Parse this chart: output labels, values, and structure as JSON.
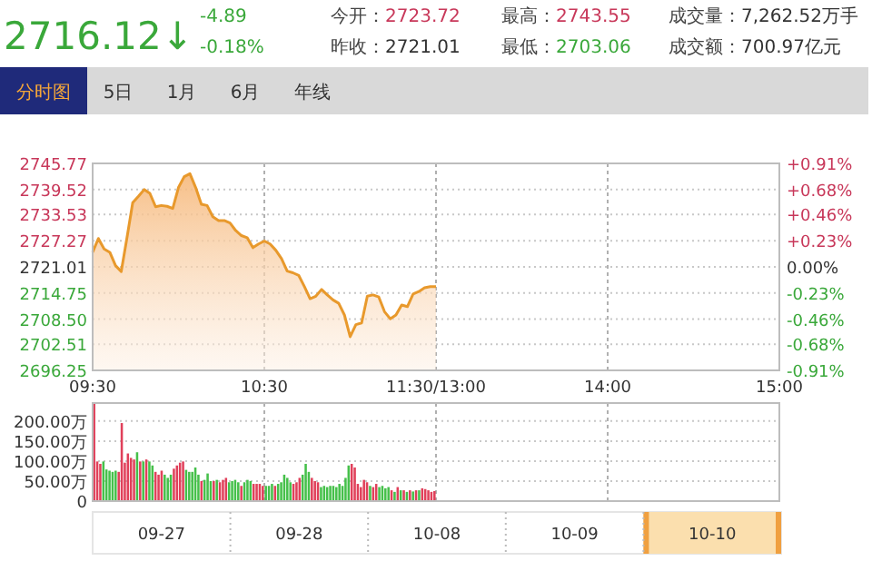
{
  "chart_data": [
    {
      "type": "area",
      "title": "2716.12↓",
      "annotations": [
        "-4.89",
        "-0.18%",
        "今开：2723.72",
        "昨收：2721.01",
        "最高：2743.55",
        "最低：2703.06",
        "成交量：7,262.52万手",
        "成交额：700.97亿元",
        "分时图",
        "5日",
        "1月",
        "6月",
        "年线"
      ],
      "categories": [
        "09:30",
        null,
        null,
        null,
        null,
        null,
        null,
        null,
        null,
        null,
        null,
        null,
        null,
        null,
        null,
        null,
        null,
        null,
        null,
        null,
        null,
        null,
        null,
        null,
        null,
        null,
        null,
        null,
        null,
        null,
        "10:30",
        null,
        null,
        null,
        null,
        null,
        null,
        null,
        null,
        null,
        null,
        null,
        null,
        null,
        null,
        null,
        null,
        null,
        null,
        null,
        null,
        null,
        null,
        null,
        null,
        null,
        null,
        null,
        null,
        null,
        "11:30/13:00",
        null,
        null,
        null,
        null,
        null,
        null,
        null,
        null,
        null,
        null,
        null,
        null,
        null,
        null,
        null,
        null,
        null,
        null,
        null,
        null,
        null,
        null,
        null,
        null,
        null,
        null,
        null,
        null,
        null,
        "14:00",
        null,
        null,
        null,
        null,
        null,
        null,
        null,
        null,
        null,
        null,
        null,
        null,
        null,
        null,
        null,
        null,
        null,
        null,
        null,
        null,
        null,
        null,
        null,
        null,
        null,
        null,
        null,
        null,
        null,
        "15:00"
      ],
      "series": [
        {
          "color": "#e8992c",
          "values": [
            2724.5,
            2727.8,
            2725.3,
            2724.5,
            2721.3,
            2719.9,
            2728,
            2736.4,
            2737.9,
            2739.5,
            2738.6,
            2735.4,
            2735.7,
            2735.5,
            2735,
            2740,
            2742.6,
            2743.3,
            2740,
            2736,
            2735.7,
            2733,
            2732.1,
            2732.1,
            2731.5,
            2729.7,
            2728.5,
            2728,
            2725.6,
            2726.5,
            2727.2,
            2726.5,
            2725,
            2723,
            2720,
            2719.6,
            2719,
            2716.3,
            2713.4,
            2714,
            2715.6,
            2714.3,
            2713.1,
            2712.3,
            2709.5,
            2704.3,
            2707.2,
            2707.6,
            2714,
            2714.3,
            2713.8,
            2710.3,
            2708.6,
            2709.5,
            2711.9,
            2711.5,
            2714.5,
            2715.1,
            2716,
            2716.3,
            2716.3,
            null,
            null,
            null,
            null,
            null,
            null,
            null,
            null,
            null,
            null,
            null,
            null,
            null,
            null,
            null,
            null,
            null,
            null,
            null,
            null,
            null,
            null,
            null,
            null,
            null,
            null,
            null,
            null,
            null,
            null,
            null,
            null,
            null,
            null,
            null,
            null,
            null,
            null,
            null,
            null,
            null,
            null,
            null,
            null,
            null,
            null,
            null,
            null,
            null,
            null,
            null,
            null,
            null,
            null,
            null,
            null,
            null,
            null,
            null,
            null
          ]
        }
      ],
      "ylim": [
        2696.25,
        2745.77
      ],
      "yticks": [
        2696.25,
        2702.51,
        {
          "value": 2708.5,
          "label": "2708.50"
        },
        2714.75,
        2721.01,
        2727.27,
        2733.53,
        2739.52,
        2745.77
      ],
      "y2lim": [
        -0.91,
        0.91
      ],
      "y2ticks": [
        {
          "value": -0.91,
          "label": "-0.91%"
        },
        {
          "value": -0.68,
          "label": "-0.68%"
        },
        {
          "value": -0.46,
          "label": "-0.46%"
        },
        {
          "value": -0.23,
          "label": "-0.23%"
        },
        {
          "value": 0,
          "label": "0.00%"
        },
        {
          "value": 0.23,
          "label": "+0.23%"
        },
        {
          "value": 0.46,
          "label": "+0.46%"
        },
        {
          "value": 0.68,
          "label": "+0.68%"
        },
        {
          "value": 0.91,
          "label": "+0.91%"
        }
      ],
      "grid": true
    },
    {
      "type": "bar",
      "annotations": [
        "09-27",
        "09-28",
        "10-08",
        "10-09",
        "10-10"
      ],
      "categories": [
        null,
        null,
        null,
        null,
        null,
        null,
        null,
        null,
        null,
        null,
        null,
        null,
        null,
        null,
        null,
        null,
        null,
        null,
        null,
        null,
        null,
        null,
        null,
        null,
        null,
        null,
        null,
        null,
        null,
        null,
        null,
        null,
        null,
        null,
        null,
        null,
        null,
        null,
        null,
        null,
        null,
        null,
        null,
        null,
        null,
        null,
        null,
        null,
        null,
        null,
        null,
        null,
        null,
        null,
        null,
        null,
        null,
        null,
        null,
        null,
        null,
        null,
        null,
        null,
        null,
        null,
        null,
        null,
        null,
        null,
        null,
        null,
        null,
        null,
        null,
        null,
        null,
        null,
        null,
        null,
        null,
        null,
        null,
        null,
        null,
        null,
        null,
        null,
        null,
        null,
        null,
        null,
        null,
        null,
        null,
        null,
        null,
        null,
        null,
        null,
        null,
        null,
        null,
        null,
        null,
        null,
        null,
        null,
        null,
        null,
        null,
        null,
        null,
        null,
        null,
        null,
        null,
        null,
        null,
        null,
        null,
        null,
        null,
        null,
        null,
        null,
        null,
        null,
        null,
        null,
        null,
        null,
        null,
        null,
        null,
        null,
        null,
        null,
        null,
        null,
        null,
        null,
        null,
        null,
        null,
        null,
        null,
        null,
        null,
        null,
        null,
        null,
        null,
        null,
        null,
        null,
        null,
        null,
        null,
        null,
        null,
        null,
        null,
        null,
        null,
        null,
        null,
        null,
        null,
        null,
        null,
        null,
        null,
        null,
        null,
        null,
        null,
        null,
        null,
        null,
        null,
        null,
        null,
        null,
        null,
        null,
        null,
        null,
        null,
        null,
        null,
        null,
        null,
        null,
        null,
        null,
        null,
        null,
        null,
        null,
        null,
        null,
        null,
        null,
        null,
        null,
        null,
        null,
        null,
        null,
        null,
        null,
        null,
        null,
        null,
        null,
        null,
        null,
        null,
        null,
        null,
        null,
        null,
        null
      ],
      "values": [
        245,
        99,
        93,
        99,
        79,
        76,
        73,
        76,
        73,
        195,
        96,
        119,
        108,
        104,
        122,
        99,
        99,
        104,
        99,
        89,
        73,
        66,
        76,
        66,
        58,
        66,
        81,
        89,
        96,
        99,
        78,
        73,
        73,
        84,
        66,
        50,
        53,
        69,
        50,
        50,
        53,
        47,
        53,
        58,
        47,
        50,
        53,
        47,
        38,
        47,
        53,
        50,
        43,
        43,
        43,
        38,
        38,
        38,
        43,
        38,
        43,
        47,
        66,
        58,
        47,
        43,
        47,
        58,
        66,
        93,
        73,
        58,
        50,
        47,
        35,
        38,
        35,
        38,
        38,
        35,
        43,
        38,
        58,
        89,
        93,
        84,
        43,
        35,
        53,
        47,
        38,
        35,
        43,
        35,
        38,
        32,
        35,
        27,
        23,
        35,
        27,
        27,
        23,
        27,
        24,
        27,
        27,
        32,
        30,
        27,
        23,
        25,
        null,
        null,
        null,
        null,
        null,
        null,
        null,
        null,
        null,
        null,
        null,
        null,
        null,
        null,
        null,
        null,
        null,
        null,
        null,
        null,
        null,
        null,
        null,
        null,
        null,
        null,
        null,
        null,
        null,
        null,
        null,
        null,
        null,
        null,
        null,
        null,
        null,
        null,
        null,
        null,
        null,
        null,
        null,
        null,
        null,
        null,
        null,
        null,
        null,
        null,
        null,
        null,
        null,
        null,
        null,
        null,
        null,
        null,
        null,
        null,
        null,
        null,
        null,
        null,
        null,
        null,
        null,
        null,
        null,
        null,
        null,
        null,
        null,
        null,
        null,
        null,
        null,
        null,
        null,
        null,
        null,
        null,
        null,
        null,
        null,
        null,
        null,
        null,
        null,
        null,
        null,
        null,
        null,
        null,
        null,
        null,
        null,
        null,
        null,
        null,
        null,
        null,
        null,
        null,
        null,
        null,
        null,
        null,
        null,
        null,
        null,
        null
      ],
      "colors": [
        "#e0405a",
        "#e0405a",
        "#e0405a",
        "#45c04a",
        "#45c04a",
        "#45c04a",
        "#45c04a",
        "#45c04a",
        "#e0405a",
        "#e0405a",
        "#e0405a",
        "#e0405a",
        "#e0405a",
        "#e0405a",
        "#45c04a",
        "#e0405a",
        "#45c04a",
        "#e0405a",
        "#45c04a",
        "#45c04a",
        "#e0405a",
        "#e0405a",
        "#e0405a",
        "#45c04a",
        "#45c04a",
        "#45c04a",
        "#e0405a",
        "#e0405a",
        "#e0405a",
        "#e0405a",
        "#45c04a",
        "#45c04a",
        "#45c04a",
        "#45c04a",
        "#45c04a",
        "#e0405a",
        "#45c04a",
        "#45c04a",
        "#45c04a",
        "#e0405a",
        "#45c04a",
        "#e0405a",
        "#e0405a",
        "#e0405a",
        "#45c04a",
        "#45c04a",
        "#45c04a",
        "#45c04a",
        "#e0405a",
        "#45c04a",
        "#45c04a",
        "#45c04a",
        "#e0405a",
        "#e0405a",
        "#e0405a",
        "#e0405a",
        "#45c04a",
        "#45c04a",
        "#45c04a",
        "#e0405a",
        "#45c04a",
        "#45c04a",
        "#45c04a",
        "#45c04a",
        "#45c04a",
        "#e0405a",
        "#e0405a",
        "#e0405a",
        "#45c04a",
        "#45c04a",
        "#45c04a",
        "#e0405a",
        "#e0405a",
        "#e0405a",
        "#45c04a",
        "#45c04a",
        "#45c04a",
        "#45c04a",
        "#45c04a",
        "#45c04a",
        "#45c04a",
        "#45c04a",
        "#45c04a",
        "#45c04a",
        "#e0405a",
        "#e0405a",
        "#e0405a",
        "#e0405a",
        "#e0405a",
        "#e0405a",
        "#45c04a",
        "#e0405a",
        "#e0405a",
        "#45c04a",
        "#45c04a",
        "#45c04a",
        "#45c04a",
        "#e0405a",
        "#45c04a",
        "#e0405a",
        "#45c04a",
        "#e0405a",
        "#45c04a",
        "#e0405a",
        "#45c04a",
        "#e0405a",
        "#45c04a",
        "#e0405a",
        "#e0405a",
        "#e0405a",
        "#e0405a",
        "#e0405a",
        null,
        null,
        null,
        null,
        null,
        null,
        null,
        null,
        null,
        null,
        null,
        null,
        null,
        null,
        null,
        null,
        null,
        null,
        null,
        null,
        null,
        null,
        null,
        null,
        null,
        null,
        null,
        null,
        null,
        null,
        null,
        null,
        null,
        null,
        null,
        null,
        null,
        null,
        null,
        null,
        null,
        null,
        null,
        null,
        null,
        null,
        null,
        null,
        null,
        null,
        null,
        null,
        null,
        null,
        null,
        null,
        null,
        null,
        null,
        null,
        null,
        null,
        null,
        null,
        null,
        null,
        null,
        null,
        null,
        null,
        null,
        null,
        null,
        null,
        null,
        null,
        null,
        null,
        null,
        null,
        null,
        null,
        null,
        null,
        null,
        null,
        null,
        null,
        null,
        null,
        null,
        null,
        null,
        null,
        null,
        null,
        null,
        null,
        null,
        null,
        null,
        null,
        null,
        null,
        null,
        null,
        null,
        null,
        null,
        null,
        null,
        null
      ],
      "ylim": [
        0,
        245
      ],
      "yticks": [
        0,
        {
          "value": 50,
          "label": "50.00万"
        },
        {
          "value": 100,
          "label": "100.00万"
        },
        {
          "value": 150,
          "label": "150.00万"
        },
        {
          "value": 200,
          "label": "200.00万"
        }
      ],
      "grid": true
    }
  ]
}
